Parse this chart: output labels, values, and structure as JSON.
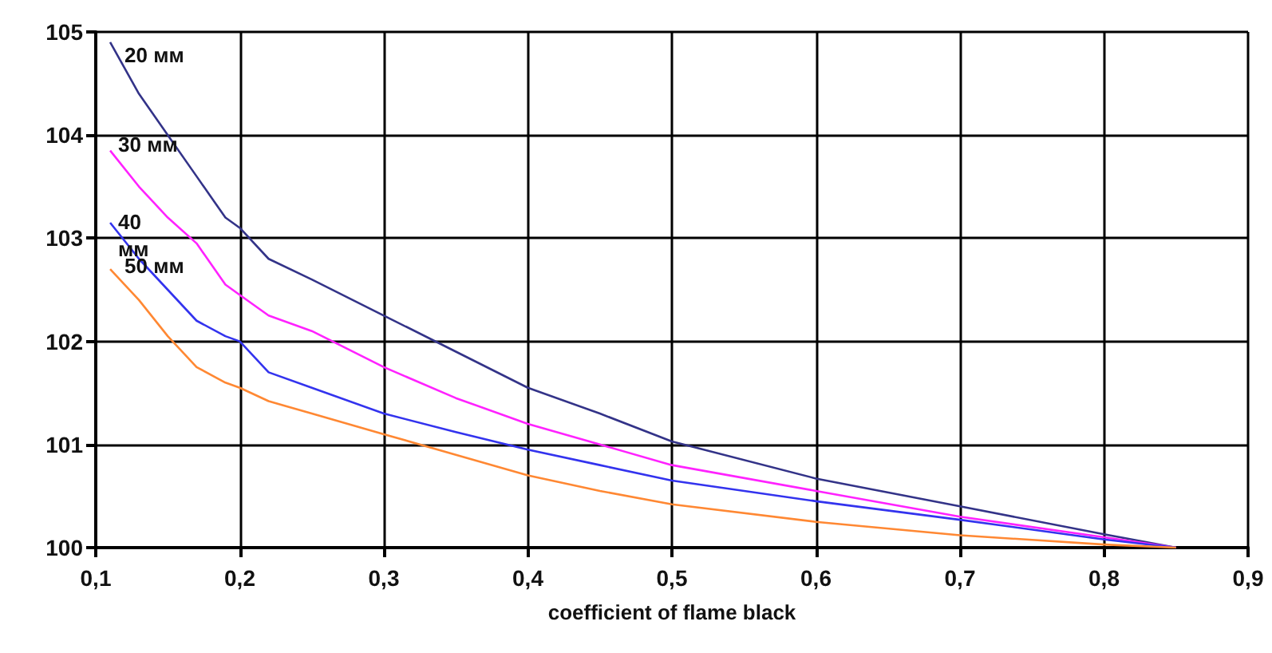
{
  "chart_data": {
    "type": "line",
    "xlabel": "coefficient of flame black",
    "xlim": [
      0.1,
      0.9
    ],
    "xticks": [
      {
        "value": 0.1,
        "label": "0,1"
      },
      {
        "value": 0.2,
        "label": "0,2"
      },
      {
        "value": 0.3,
        "label": "0,3"
      },
      {
        "value": 0.4,
        "label": "0,4"
      },
      {
        "value": 0.5,
        "label": "0,5"
      },
      {
        "value": 0.6,
        "label": "0,6"
      },
      {
        "value": 0.7,
        "label": "0,7"
      },
      {
        "value": 0.8,
        "label": "0,8"
      },
      {
        "value": 0.9,
        "label": "0,9"
      }
    ],
    "ylim": [
      100,
      105
    ],
    "yticks": [
      100,
      101,
      102,
      103,
      104,
      105
    ],
    "grid": true,
    "legend": false,
    "marker": "none",
    "line_style": "solid",
    "x": [
      0.11,
      0.13,
      0.15,
      0.17,
      0.19,
      0.2,
      0.22,
      0.25,
      0.3,
      0.35,
      0.4,
      0.45,
      0.5,
      0.6,
      0.7,
      0.8,
      0.85
    ],
    "series": [
      {
        "name": "20 мм",
        "color": "#333388",
        "values": [
          104.9,
          104.4,
          104.0,
          103.6,
          103.2,
          103.1,
          102.8,
          102.6,
          102.25,
          101.9,
          101.55,
          101.3,
          101.03,
          100.67,
          100.4,
          100.13,
          100
        ]
      },
      {
        "name": "30 мм",
        "color": "#ff22ff",
        "values": [
          103.85,
          103.5,
          103.2,
          102.95,
          102.55,
          102.45,
          102.25,
          102.1,
          101.75,
          101.45,
          101.2,
          101.0,
          100.8,
          100.55,
          100.3,
          100.1,
          100
        ]
      },
      {
        "name": "40 мм",
        "color": "#3333ee",
        "values": [
          103.15,
          102.8,
          102.5,
          102.2,
          102.05,
          102.0,
          101.7,
          101.55,
          101.3,
          101.12,
          100.95,
          100.8,
          100.65,
          100.45,
          100.27,
          100.08,
          100
        ]
      },
      {
        "name": "50 мм",
        "color": "#ff8833",
        "values": [
          102.7,
          102.4,
          102.05,
          101.75,
          101.6,
          101.55,
          101.42,
          101.3,
          101.1,
          100.9,
          100.7,
          100.55,
          100.42,
          100.25,
          100.12,
          100.03,
          100
        ]
      }
    ]
  }
}
